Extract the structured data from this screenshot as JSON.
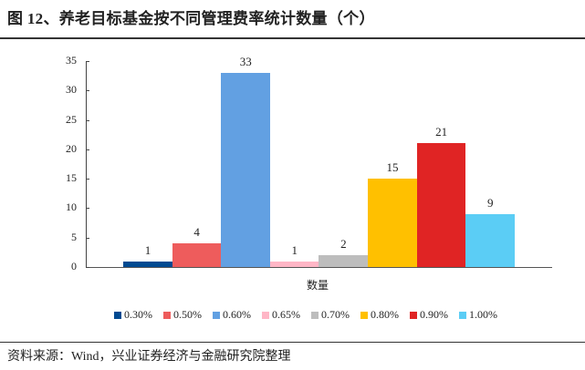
{
  "title": "图 12、养老目标基金按不同管理费率统计数量（个）",
  "source": "资料来源：Wind，兴业证券经济与金融研究院整理",
  "chart_data": {
    "type": "bar",
    "title": "图 12、养老目标基金按不同管理费率统计数量（个）",
    "xlabel": "数量",
    "ylabel": "",
    "ylim": [
      0,
      35
    ],
    "yticks": [
      0,
      5,
      10,
      15,
      20,
      25,
      30,
      35
    ],
    "grid": false,
    "legend_position": "bottom",
    "categories": [
      "数量"
    ],
    "series": [
      {
        "name": "0.30%",
        "values": [
          1
        ],
        "color": "#004A91"
      },
      {
        "name": "0.50%",
        "values": [
          4
        ],
        "color": "#EE5C5C"
      },
      {
        "name": "0.60%",
        "values": [
          33
        ],
        "color": "#62A0E2"
      },
      {
        "name": "0.65%",
        "values": [
          1
        ],
        "color": "#FFB6C6"
      },
      {
        "name": "0.70%",
        "values": [
          2
        ],
        "color": "#BDBDBD"
      },
      {
        "name": "0.80%",
        "values": [
          15
        ],
        "color": "#FFC000"
      },
      {
        "name": "0.90%",
        "values": [
          21
        ],
        "color": "#E02424"
      },
      {
        "name": "1.00%",
        "values": [
          9
        ],
        "color": "#5BCDF5"
      }
    ]
  }
}
